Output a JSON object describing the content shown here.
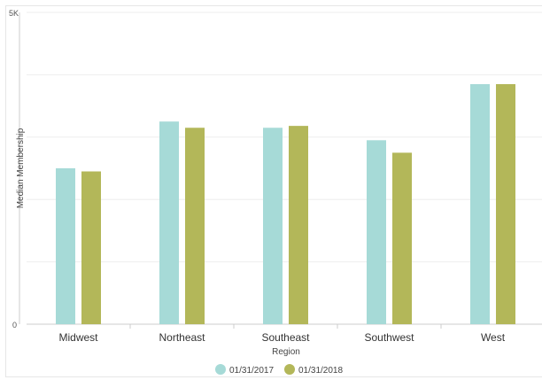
{
  "chart_data": {
    "type": "bar",
    "xlabel": "Region",
    "ylabel": "Median Membership",
    "ylim": [
      0,
      5000
    ],
    "ytick_labels": [
      "0",
      "5K"
    ],
    "grid": true,
    "legend_position": "bottom",
    "categories": [
      "Midwest",
      "Northeast",
      "Southeast",
      "Southwest",
      "West"
    ],
    "series": [
      {
        "name": "01/31/2017",
        "color": "#a6dad7",
        "values": [
          2500,
          3250,
          3150,
          2950,
          3850
        ]
      },
      {
        "name": "01/31/2018",
        "color": "#b3b759",
        "values": [
          2450,
          3150,
          3180,
          2750,
          3850
        ]
      }
    ]
  }
}
